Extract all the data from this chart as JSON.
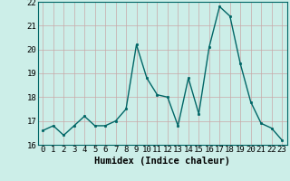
{
  "x": [
    0,
    1,
    2,
    3,
    4,
    5,
    6,
    7,
    8,
    9,
    10,
    11,
    12,
    13,
    14,
    15,
    16,
    17,
    18,
    19,
    20,
    21,
    22,
    23
  ],
  "y": [
    16.6,
    16.8,
    16.4,
    16.8,
    17.2,
    16.8,
    16.8,
    17.0,
    17.5,
    20.2,
    18.8,
    18.1,
    18.0,
    16.8,
    18.8,
    17.3,
    20.1,
    21.8,
    21.4,
    19.4,
    17.8,
    16.9,
    16.7,
    16.2
  ],
  "line_color": "#006666",
  "marker": ".",
  "marker_size": 3.5,
  "bg_color": "#cceee8",
  "grid_color": "#c8a8a8",
  "xlabel": "Humidex (Indice chaleur)",
  "ylim": [
    16,
    22
  ],
  "xlim": [
    -0.5,
    23.5
  ],
  "yticks": [
    16,
    17,
    18,
    19,
    20,
    21,
    22
  ],
  "xticks": [
    0,
    1,
    2,
    3,
    4,
    5,
    6,
    7,
    8,
    9,
    10,
    11,
    12,
    13,
    14,
    15,
    16,
    17,
    18,
    19,
    20,
    21,
    22,
    23
  ],
  "xlabel_fontsize": 7.5,
  "tick_fontsize": 6.5,
  "linewidth": 1.0
}
